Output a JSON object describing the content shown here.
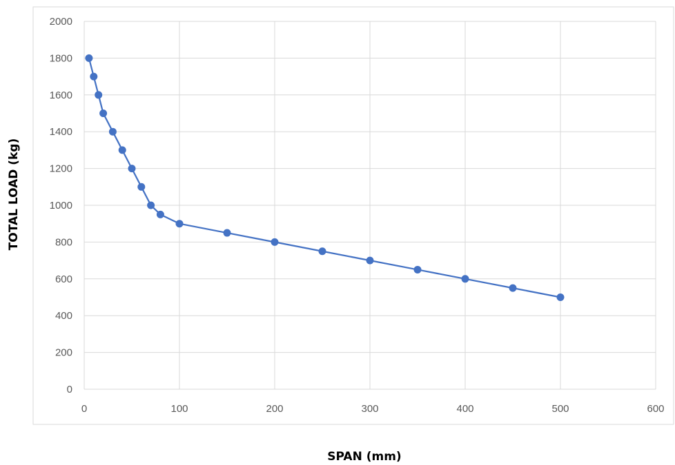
{
  "chart_data": {
    "type": "line",
    "title": "",
    "xlabel": "SPAN (mm)",
    "ylabel": "TOTAL LOAD (kg)",
    "xlim": [
      0,
      600
    ],
    "ylim": [
      0,
      2000
    ],
    "x_ticks": [
      "0",
      "100",
      "200",
      "300",
      "400",
      "500",
      "600"
    ],
    "y_ticks": [
      "0",
      "200",
      "400",
      "600",
      "800",
      "1000",
      "1200",
      "1400",
      "1600",
      "1800",
      "2000"
    ],
    "x_tick_values": [
      0,
      100,
      200,
      300,
      400,
      500,
      600
    ],
    "y_tick_values": [
      0,
      200,
      400,
      600,
      800,
      1000,
      1200,
      1400,
      1600,
      1800,
      2000
    ],
    "grid": true,
    "legend": "none",
    "series": [
      {
        "color": "#4472c4",
        "markers": "circle",
        "x": [
          5,
          10,
          15,
          20,
          30,
          40,
          50,
          60,
          70,
          80,
          100,
          150,
          200,
          250,
          300,
          350,
          400,
          450,
          500
        ],
        "y": [
          1800,
          1700,
          1600,
          1500,
          1400,
          1300,
          1200,
          1100,
          1000,
          950,
          900,
          850,
          800,
          750,
          700,
          650,
          600,
          550,
          500
        ]
      }
    ],
    "colors": {
      "series": "#4472c4",
      "grid": "#d9d9d9",
      "tick_text": "#595959",
      "frame": "#d9d9d9"
    }
  }
}
